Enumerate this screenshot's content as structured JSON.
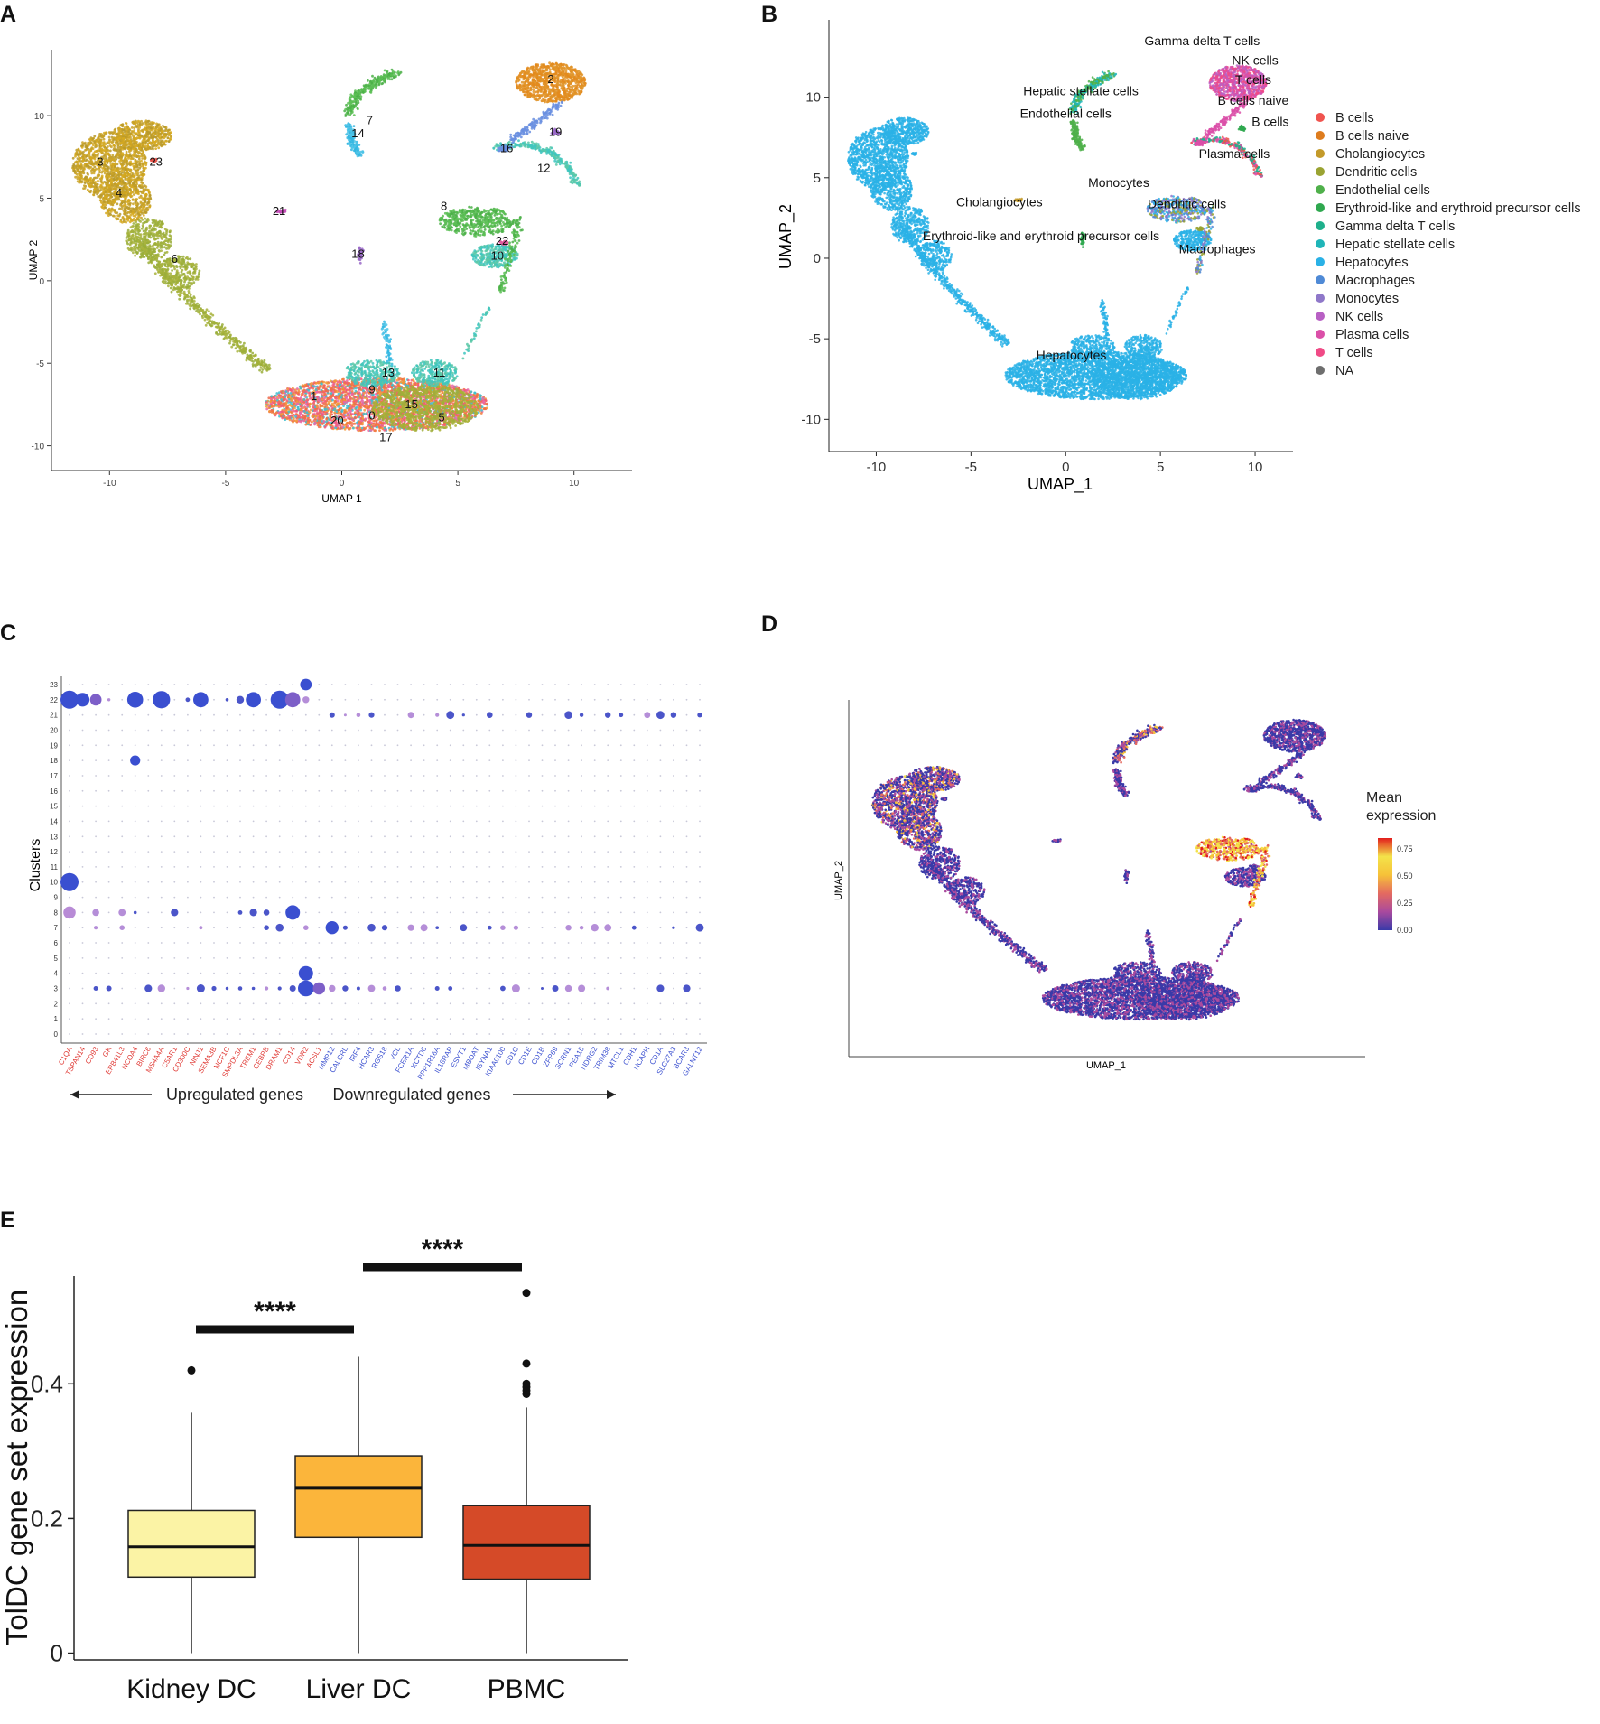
{
  "figure": {
    "panel_letters": [
      "A",
      "B",
      "C",
      "D",
      "E"
    ]
  },
  "chart_data": [
    {
      "panel": "A",
      "type": "scatter",
      "title": "",
      "xlabel": "UMAP 1",
      "ylabel": "UMAP 2",
      "xlim": [
        -12.5,
        12.5
      ],
      "ylim": [
        -11.5,
        14
      ],
      "xticks": [
        "-10",
        "-5",
        "0",
        "5",
        "10"
      ],
      "yticks": [
        "-10",
        "-5",
        "0",
        "5",
        "10"
      ],
      "cluster_labels": [
        {
          "label": "0",
          "x": 1.3,
          "y": -8.2
        },
        {
          "label": "1",
          "x": -1.2,
          "y": -7.0
        },
        {
          "label": "2",
          "x": 9.0,
          "y": 12.2
        },
        {
          "label": "3",
          "x": -10.4,
          "y": 7.2
        },
        {
          "label": "4",
          "x": -9.6,
          "y": 5.3
        },
        {
          "label": "5",
          "x": 4.3,
          "y": -8.3
        },
        {
          "label": "6",
          "x": -7.2,
          "y": 1.3
        },
        {
          "label": "7",
          "x": 1.2,
          "y": 9.7
        },
        {
          "label": "8",
          "x": 4.4,
          "y": 4.5
        },
        {
          "label": "9",
          "x": 1.3,
          "y": -6.6
        },
        {
          "label": "10",
          "x": 6.7,
          "y": 1.5
        },
        {
          "label": "11",
          "x": 4.2,
          "y": -5.6
        },
        {
          "label": "12",
          "x": 8.7,
          "y": 6.8
        },
        {
          "label": "13",
          "x": 2.0,
          "y": -5.6
        },
        {
          "label": "14",
          "x": 0.7,
          "y": 8.9
        },
        {
          "label": "15",
          "x": 3.0,
          "y": -7.5
        },
        {
          "label": "16",
          "x": 7.1,
          "y": 8.0
        },
        {
          "label": "17",
          "x": 1.9,
          "y": -9.5
        },
        {
          "label": "18",
          "x": 0.7,
          "y": 1.6
        },
        {
          "label": "19",
          "x": 9.2,
          "y": 9.0
        },
        {
          "label": "20",
          "x": -0.2,
          "y": -8.5
        },
        {
          "label": "21",
          "x": -2.7,
          "y": 4.2
        },
        {
          "label": "22",
          "x": 6.9,
          "y": 2.4
        },
        {
          "label": "23",
          "x": -8.0,
          "y": 7.2
        }
      ]
    },
    {
      "panel": "B",
      "type": "scatter",
      "xlabel": "UMAP_1",
      "ylabel": "UMAP_2",
      "xlim": [
        -12.5,
        12
      ],
      "ylim": [
        -12,
        14.8
      ],
      "xticks": [
        "-10",
        "-5",
        "0",
        "5",
        "10"
      ],
      "yticks": [
        "-10",
        "-5",
        "0",
        "5",
        "10"
      ],
      "annotations": [
        {
          "label": "Gamma delta T cells",
          "x": 7.2,
          "y": 13.5
        },
        {
          "label": "NK cells",
          "x": 10.0,
          "y": 12.3
        },
        {
          "label": "T cells",
          "x": 9.9,
          "y": 11.1
        },
        {
          "label": "B cells naive",
          "x": 9.9,
          "y": 9.8
        },
        {
          "label": "B cells",
          "x": 10.8,
          "y": 8.5
        },
        {
          "label": "Plasma cells",
          "x": 8.9,
          "y": 6.5
        },
        {
          "label": "Hepatic stellate cells",
          "x": 0.8,
          "y": 10.4
        },
        {
          "label": "Endothelial cells",
          "x": 0.0,
          "y": 9.0
        },
        {
          "label": "Monocytes",
          "x": 2.8,
          "y": 4.7
        },
        {
          "label": "Dendritic cells",
          "x": 6.4,
          "y": 3.4
        },
        {
          "label": "Cholangiocytes",
          "x": -3.5,
          "y": 3.5
        },
        {
          "label": "Erythroid-like and erythroid precursor cells",
          "x": -1.3,
          "y": 1.4
        },
        {
          "label": "Macrophages",
          "x": 8.0,
          "y": 0.6
        },
        {
          "label": "Hepatocytes",
          "x": 0.3,
          "y": -6.0
        }
      ],
      "legend": [
        {
          "name": "B cells",
          "color": "#f0544f"
        },
        {
          "name": "B cells naive",
          "color": "#de7c1e"
        },
        {
          "name": "Cholangiocytes",
          "color": "#c39a2a"
        },
        {
          "name": "Dendritic cells",
          "color": "#9aa332"
        },
        {
          "name": "Endothelial cells",
          "color": "#4fb04a"
        },
        {
          "name": "Erythroid-like and erythroid precursor cells",
          "color": "#2fa84f"
        },
        {
          "name": "Gamma delta T cells",
          "color": "#1fb08c"
        },
        {
          "name": "Hepatic stellate cells",
          "color": "#1fb5b8"
        },
        {
          "name": "Hepatocytes",
          "color": "#2ab1e6"
        },
        {
          "name": "Macrophages",
          "color": "#4f8ad6"
        },
        {
          "name": "Monocytes",
          "color": "#8f78c9"
        },
        {
          "name": "NK cells",
          "color": "#b860c4"
        },
        {
          "name": "Plasma cells",
          "color": "#db4fa8"
        },
        {
          "name": "T cells",
          "color": "#f04a86"
        },
        {
          "name": "NA",
          "color": "#6e6e6e"
        }
      ]
    },
    {
      "panel": "C",
      "type": "dot",
      "ylabel": "Clusters",
      "clusters": [
        "0",
        "1",
        "2",
        "3",
        "4",
        "5",
        "6",
        "7",
        "8",
        "9",
        "10",
        "11",
        "12",
        "13",
        "14",
        "15",
        "16",
        "17",
        "18",
        "19",
        "20",
        "21",
        "22",
        "23"
      ],
      "upregulated_genes": [
        "C1QA",
        "TSPAN14",
        "CD93",
        "GK",
        "EPB41L3",
        "NCOA4",
        "BIRC6",
        "MS4A4A",
        "C5AR1",
        "CD300C",
        "NINJ1",
        "SEMA3B",
        "NCF1C",
        "SMPDL3A",
        "TREM1",
        "CEBPB",
        "DRAM1",
        "CD14",
        "VDR2",
        "ACSL1"
      ],
      "downregulated_genes": [
        "MMP12",
        "CALCRL",
        "IRF4",
        "HCAR3",
        "RGS18",
        "VCL",
        "FCER1A",
        "KCTD6",
        "PPP1R16A",
        "IL18RAP",
        "ESYT1",
        "MBOAT",
        "ISYNA1",
        "KIAA0100",
        "CD1C",
        "CD1E",
        "CD1B",
        "ZFP69",
        "SCRN1",
        "PEA15",
        "NDRG2",
        "TRIM38",
        "MTCL1",
        "CDH1",
        "NCAPH",
        "CD1A",
        "SLC27A3",
        "BCAR3",
        "GALNT12"
      ],
      "up_color": "#e03a35",
      "down_color": "#3a4fd0",
      "arrow_left": "Upregulated genes",
      "arrow_right": "Downregulated genes",
      "highlight_dots": [
        {
          "gene": "C1QA",
          "cluster": "22",
          "size": 1.0,
          "expr": 0.9
        },
        {
          "gene": "C1QA",
          "cluster": "10",
          "size": 1.0,
          "expr": 0.9
        },
        {
          "gene": "C1QA",
          "cluster": "8",
          "size": 0.6,
          "expr": 0.4
        },
        {
          "gene": "TSPAN14",
          "cluster": "22",
          "size": 0.7,
          "expr": 0.8
        },
        {
          "gene": "CD93",
          "cluster": "22",
          "size": 0.55,
          "expr": 0.5
        },
        {
          "gene": "NCOA4",
          "cluster": "22",
          "size": 0.85,
          "expr": 0.9
        },
        {
          "gene": "NCOA4",
          "cluster": "18",
          "size": 0.45,
          "expr": 0.8
        },
        {
          "gene": "MS4A4A",
          "cluster": "22",
          "size": 0.95,
          "expr": 0.9
        },
        {
          "gene": "NINJ1",
          "cluster": "22",
          "size": 0.8,
          "expr": 0.9
        },
        {
          "gene": "TREM1",
          "cluster": "22",
          "size": 0.8,
          "expr": 0.9
        },
        {
          "gene": "DRAM1",
          "cluster": "22",
          "size": 1.0,
          "expr": 0.9
        },
        {
          "gene": "CD14",
          "cluster": "22",
          "size": 0.8,
          "expr": 0.6
        },
        {
          "gene": "CD14",
          "cluster": "8",
          "size": 0.75,
          "expr": 0.9
        },
        {
          "gene": "VDR2",
          "cluster": "4",
          "size": 0.75,
          "expr": 0.9
        },
        {
          "gene": "VDR2",
          "cluster": "3",
          "size": 0.85,
          "expr": 0.9
        },
        {
          "gene": "VDR2",
          "cluster": "23",
          "size": 0.55,
          "expr": 0.9
        },
        {
          "gene": "MMP12",
          "cluster": "7",
          "size": 0.65,
          "expr": 0.9
        },
        {
          "gene": "ACSL1",
          "cluster": "3",
          "size": 0.6,
          "expr": 0.5
        }
      ]
    },
    {
      "panel": "D",
      "type": "scatter",
      "xlabel": "UMAP_1",
      "ylabel": "UMAP_2",
      "legend_title": "Mean expression",
      "colorbar_ticks": [
        "0.75",
        "0.50",
        "0.25",
        "0.00"
      ],
      "colorbar_range": [
        0,
        0.85
      ],
      "colors": [
        "#3a3aa8",
        "#a94a9e",
        "#e46a60",
        "#f6c239",
        "#f3e34a",
        "#e21d1d"
      ]
    },
    {
      "panel": "E",
      "type": "box",
      "xlabel": "",
      "ylabel": "TolDC gene set expression",
      "categories": [
        "Kidney DC",
        "Liver DC",
        "PBMC"
      ],
      "yticks": [
        "0",
        "0.2",
        "0.4"
      ],
      "ylim": [
        -0.01,
        0.56
      ],
      "series": [
        {
          "name": "Kidney DC",
          "color": "#fbf3a5",
          "min": 0.0,
          "q1": 0.113,
          "median": 0.158,
          "q3": 0.212,
          "max": 0.357,
          "outliers": [
            0.42
          ]
        },
        {
          "name": "Liver DC",
          "color": "#fbb53b",
          "min": 0.0,
          "q1": 0.172,
          "median": 0.245,
          "q3": 0.293,
          "max": 0.44,
          "outliers": []
        },
        {
          "name": "PBMC",
          "color": "#d54a28",
          "min": 0.0,
          "q1": 0.11,
          "median": 0.16,
          "q3": 0.219,
          "max": 0.365,
          "outliers": [
            0.385,
            0.39,
            0.395,
            0.4,
            0.43,
            0.535
          ]
        }
      ],
      "significance": [
        {
          "pair": [
            "Kidney DC",
            "Liver DC"
          ],
          "label": "****"
        },
        {
          "pair": [
            "Liver DC",
            "PBMC"
          ],
          "label": "****"
        }
      ]
    }
  ]
}
